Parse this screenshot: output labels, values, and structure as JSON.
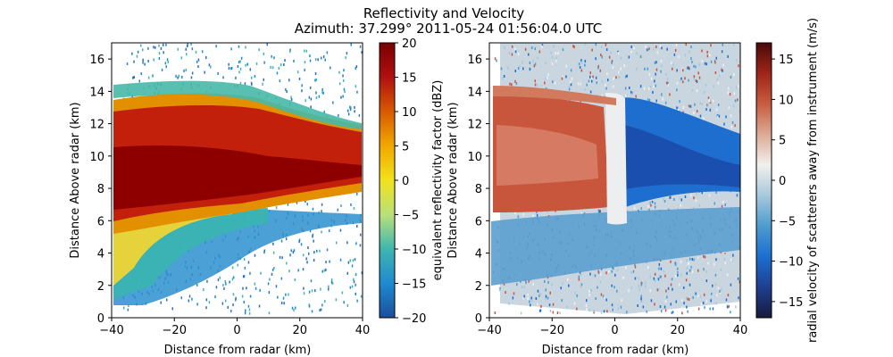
{
  "figure": {
    "title": "Reflectivity and Velocity",
    "subtitle": "Azimuth: 37.299°  2011-05-24 01:56:04.0 UTC"
  },
  "chart_data": [
    {
      "type": "heatmap",
      "variable": "reflectivity",
      "xlabel": "Distance from radar (km)",
      "ylabel": "Distance Above radar  (km)",
      "xlim": [
        -40,
        40
      ],
      "ylim": [
        0,
        17
      ],
      "xticks": [
        "−40",
        "−20",
        "0",
        "20",
        "40"
      ],
      "yticks": [
        "0",
        "2",
        "4",
        "6",
        "8",
        "10",
        "12",
        "14",
        "16"
      ],
      "colorbar": {
        "label": "equivalent reflectivity factor (dBZ)",
        "range": [
          -20,
          20
        ],
        "ticks": [
          "−20",
          "−15",
          "−10",
          "−5",
          "0",
          "5",
          "10",
          "15",
          "20"
        ],
        "colormap": [
          "#1a4f9c",
          "#1f8ad0",
          "#3fb6b0",
          "#b9e07a",
          "#f2e21c",
          "#f0a800",
          "#d85a00",
          "#b01010",
          "#7a0000"
        ]
      },
      "features": {
        "core_band_km": [
          7.5,
          12.5
        ],
        "core_dbz": 15,
        "anvil_top_km": 14.5,
        "melting_layer_km": 6.5
      }
    },
    {
      "type": "heatmap",
      "variable": "velocity",
      "xlabel": "Distance from radar (km)",
      "ylabel": "Distance Above radar  (km)",
      "xlim": [
        -40,
        40
      ],
      "ylim": [
        0,
        17
      ],
      "xticks": [
        "−40",
        "−20",
        "0",
        "20",
        "40"
      ],
      "yticks": [
        "0",
        "2",
        "4",
        "6",
        "8",
        "10",
        "12",
        "14",
        "16"
      ],
      "colorbar": {
        "label": "radial velocity of scatterers away from instrument (m/s)",
        "range": [
          -17,
          17
        ],
        "ticks": [
          "−15",
          "−10",
          "−5",
          "0",
          "5",
          "10",
          "15"
        ],
        "tick_values": [
          -15,
          -10,
          -5,
          0,
          5,
          10,
          15
        ],
        "colormap": [
          "#171a3d",
          "#1e3f8f",
          "#1a6fd0",
          "#4d9ccf",
          "#a6c8dc",
          "#f2f0ee",
          "#dcaa95",
          "#c75d3f",
          "#a02418",
          "#4a0a0a"
        ]
      },
      "features": {
        "outbound_region_km": {
          "x": [
            -40,
            0
          ],
          "y": [
            7,
            13.5
          ],
          "mps": 8
        },
        "inbound_region_km": {
          "x": [
            0,
            40
          ],
          "y": [
            7.5,
            12.5
          ],
          "mps": -8
        }
      }
    }
  ]
}
